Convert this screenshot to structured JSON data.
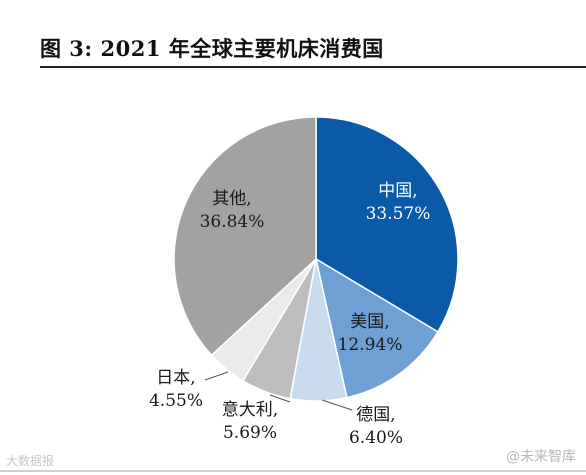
{
  "figure_title": "图 3: 2021 年全球主要机床消费国",
  "watermarks": {
    "left": "大数据报",
    "right": "@未来智库"
  },
  "chart_data": {
    "type": "pie",
    "start": "12 o'clock",
    "direction": "clockwise",
    "slices": [
      {
        "label": "中国,",
        "value": 33.57,
        "value_text": "33.57%",
        "color": "#0A5AA8",
        "text_color": "#ffffff"
      },
      {
        "label": "美国,",
        "value": 12.94,
        "value_text": "12.94%",
        "color": "#6E9FD5",
        "text_color": "#1a1a1a"
      },
      {
        "label": "德国,",
        "value": 6.4,
        "value_text": "6.40%",
        "color": "#C9DCEF",
        "text_color": "#1a1a1a"
      },
      {
        "label": "意大利,",
        "value": 5.69,
        "value_text": "5.69%",
        "color": "#BDBDBD",
        "text_color": "#1a1a1a"
      },
      {
        "label": "日本,",
        "value": 4.55,
        "value_text": "4.55%",
        "color": "#EAEAEA",
        "text_color": "#1a1a1a"
      },
      {
        "label": "其他,",
        "value": 36.84,
        "value_text": "36.84%",
        "color": "#A2A2A2",
        "text_color": "#1a1a1a"
      }
    ]
  }
}
